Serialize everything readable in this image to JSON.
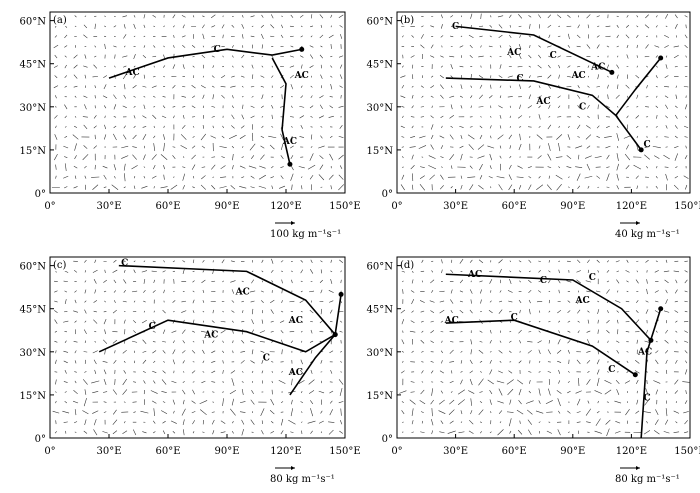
{
  "panels": [
    {
      "label": "(a)",
      "ref_vector": "100 kg m⁻¹s⁻¹",
      "annotations": [
        "AC",
        "C",
        "AC",
        "AC"
      ]
    },
    {
      "label": "(b)",
      "ref_vector": "40 kg m⁻¹s⁻¹",
      "annotations": [
        "C",
        "AC",
        "C",
        "AC",
        "AC",
        "C",
        "AC",
        "C",
        "C"
      ]
    },
    {
      "label": "(c)",
      "ref_vector": "80 kg m⁻¹s⁻¹",
      "annotations": [
        "C",
        "AC",
        "C",
        "AC",
        "AC",
        "C",
        "AC"
      ]
    },
    {
      "label": "(d)",
      "ref_vector": "80 kg m⁻¹s⁻¹",
      "annotations": [
        "AC",
        "C",
        "AC",
        "C",
        "AC",
        "C",
        "C",
        "AC",
        "C"
      ]
    }
  ],
  "x_tick_labels": [
    "0°",
    "30°E",
    "60°E",
    "90°E",
    "120°E",
    "150°E"
  ],
  "y_tick_labels": [
    "0°",
    "15°N",
    "30°N",
    "45°N",
    "60°N"
  ]
}
